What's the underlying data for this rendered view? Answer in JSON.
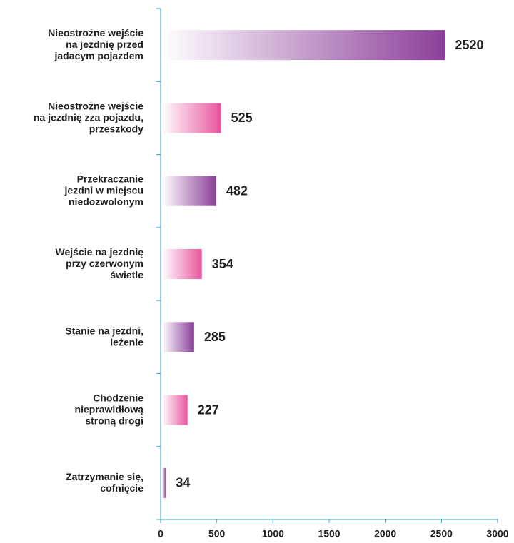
{
  "chart_data": {
    "type": "hbar",
    "categories": [
      "Nieostrożne wejście\nna jezdnię  przed\njadacym pojazdem",
      "Nieostrożne wejście\nna jezdnię zza pojazdu,\nprzeszkody",
      "Przekraczanie\njezdni w miejscu\nniedozwolonym",
      "Wejście na jezdnię\nprzy czerwonym\nświetle",
      "Stanie na jezdni,\nleżenie",
      "Chodzenie\nnieprawidłową\nstroną drogi",
      "Zatrzymanie się,\ncofnięcie"
    ],
    "values": [
      2520,
      525,
      482,
      354,
      285,
      227,
      34
    ],
    "colors": [
      "#8b3f98",
      "#e9559d",
      "#8b3f98",
      "#e9559d",
      "#8b3f98",
      "#e9559d",
      "#8b3f98"
    ],
    "xlim": [
      0,
      3000
    ],
    "xticks": [
      0,
      500,
      1000,
      1500,
      2000,
      2500,
      3000
    ]
  }
}
